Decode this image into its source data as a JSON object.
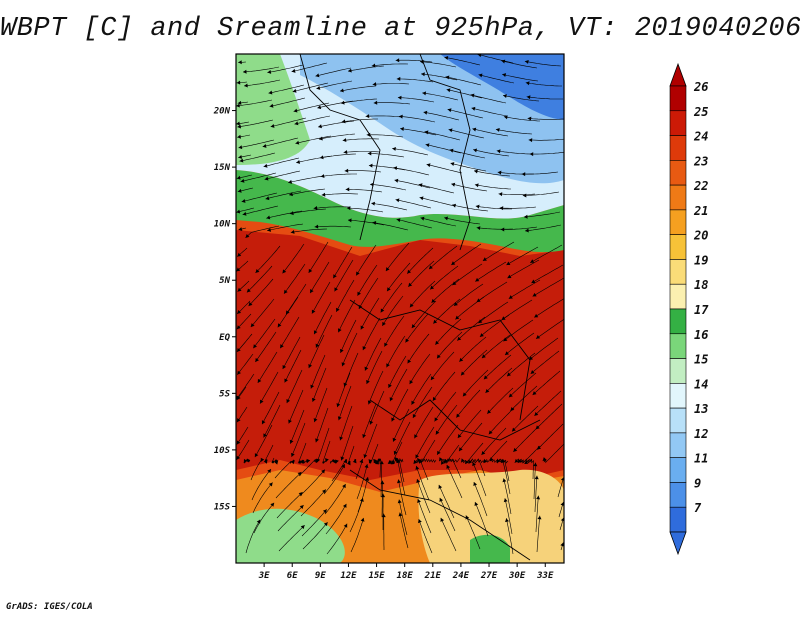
{
  "title": "WBPT [C] and Sreamline at 925hPa, VT: 2019040206",
  "footer": "GrADS: IGES/COLA",
  "map": {
    "lon_range_deg": [
      0,
      35
    ],
    "lat_range_deg": [
      -20,
      25
    ],
    "x_ticks": [
      "3E",
      "6E",
      "9E",
      "12E",
      "15E",
      "18E",
      "21E",
      "24E",
      "27E",
      "30E",
      "33E"
    ],
    "x_tick_values": [
      3,
      6,
      9,
      12,
      15,
      18,
      21,
      24,
      27,
      30,
      33
    ],
    "y_ticks": [
      "20N",
      "15N",
      "10N",
      "5N",
      "EQ",
      "5S",
      "10S",
      "15S"
    ],
    "y_tick_values": [
      20,
      15,
      10,
      5,
      0,
      -5,
      -10,
      -15
    ],
    "field": "wet-bulb potential temperature (shaded)",
    "overlay": "streamlines (wind flow)"
  },
  "colorbar": {
    "labels": [
      "26",
      "25",
      "24",
      "23",
      "22",
      "21",
      "20",
      "19",
      "18",
      "17",
      "16",
      "15",
      "14",
      "13",
      "12",
      "11",
      "9",
      "7"
    ],
    "colors": [
      "#b00000",
      "#cc1a06",
      "#de3a0a",
      "#e85a12",
      "#ef7a16",
      "#f5a020",
      "#f7c238",
      "#fadc78",
      "#fbf0b0",
      "#34b044",
      "#7ad67a",
      "#c2eec2",
      "#e2f6fc",
      "#b8e0f8",
      "#92c8f4",
      "#6aaef0",
      "#4c90e8",
      "#2f6cdc"
    ]
  },
  "palette": {
    "warm_dark": "#c51d0a",
    "warm_mid": "#e54c12",
    "warm_orange": "#ef8a1e",
    "green": "#45b84c",
    "light_green": "#8fdc8a",
    "cool_light": "#d6eefc",
    "cool_mid": "#8ec2f0",
    "cool_dark": "#3f7fe0",
    "streamline": "#000000"
  }
}
